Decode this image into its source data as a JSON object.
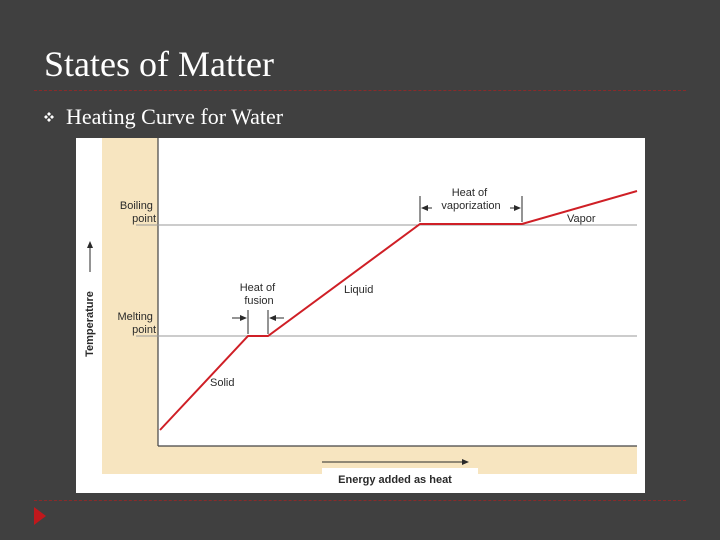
{
  "slide": {
    "title": "States of Matter",
    "bullet_text": "Heating Curve for Water",
    "bullet_icon": "quad-diamond-bullet-icon",
    "nav_icon": "triangle-next-icon",
    "colors": {
      "background": "#404040",
      "rule": "#8a2a2a",
      "accent": "#c0181c",
      "figure_bg": "#f7e5c0"
    }
  },
  "figure": {
    "y_axis_label": "Temperature",
    "x_axis_label": "Energy added as heat",
    "y_levels": {
      "boiling": "Boiling point",
      "melting": "Melting point"
    },
    "phases": [
      "Solid",
      "Liquid",
      "Vapor"
    ],
    "latent_heats": {
      "fusion": "Heat of fusion",
      "vaporization": "Heat of vaporization"
    }
  }
}
